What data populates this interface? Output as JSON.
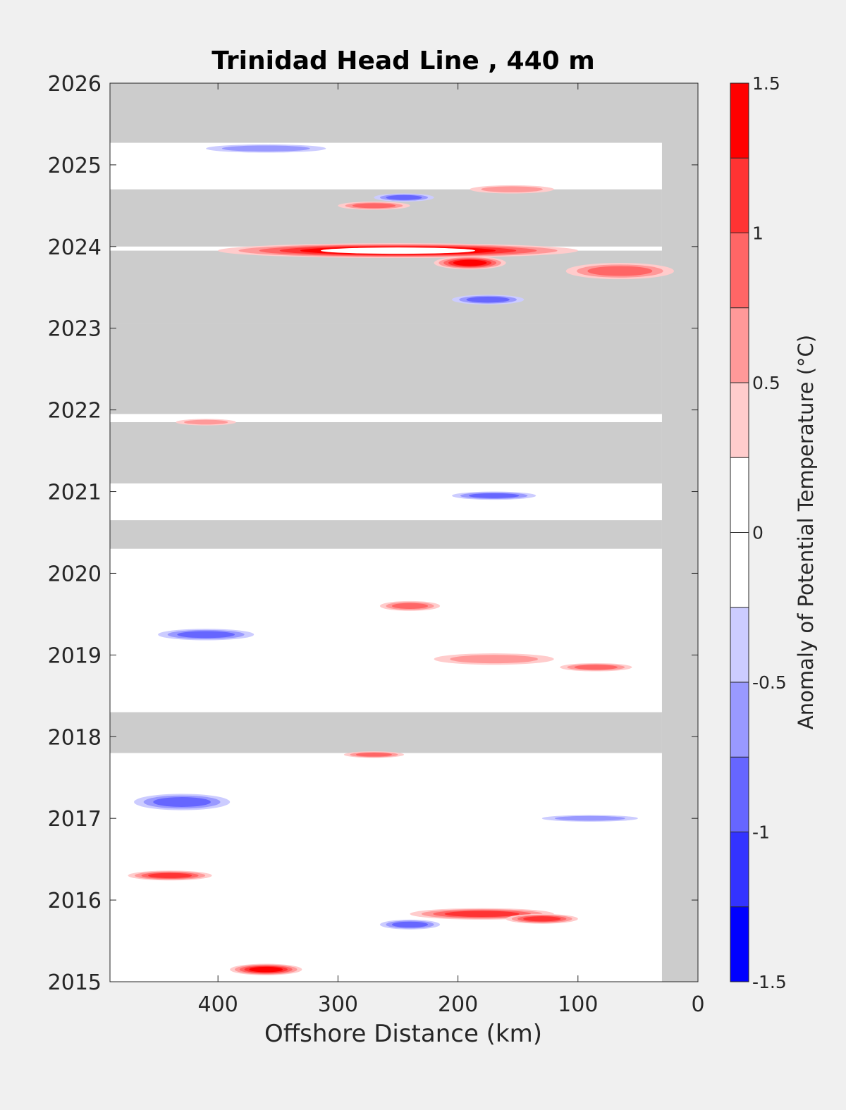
{
  "chart_data": {
    "type": "heatmap",
    "title": "Trinidad Head Line , 440 m",
    "xlabel": "Offshore Distance (km)",
    "ylabel": "",
    "x_reversed": true,
    "xlim": [
      0,
      490
    ],
    "ylim": [
      2015,
      2026
    ],
    "xticks": [
      400,
      300,
      200,
      100,
      0
    ],
    "yticks": [
      2015,
      2016,
      2017,
      2018,
      2019,
      2020,
      2021,
      2022,
      2023,
      2024,
      2025,
      2026
    ],
    "grid": false,
    "colorbar": {
      "label": "Anomaly of Potential Temperature (°C)",
      "ticks": [
        -1.5,
        -1,
        -0.5,
        0,
        0.5,
        1,
        1.5
      ],
      "tick_labels": [
        "-1.5",
        "-1",
        "-0.5",
        "0",
        "0.5",
        "1",
        "1.5"
      ],
      "levels": [
        -1.5,
        -1.25,
        -1.0,
        -0.75,
        -0.5,
        -0.25,
        0,
        0.25,
        0.5,
        0.75,
        1.0,
        1.25,
        1.5
      ],
      "colors": [
        "#0000ff",
        "#3333ff",
        "#6666ff",
        "#9999ff",
        "#ccccff",
        "#ffffff",
        "#ffffff",
        "#ffcccc",
        "#ff9999",
        "#ff6666",
        "#ff3333",
        "#ff0000"
      ]
    },
    "missing_color": "#cccccc",
    "gaps": [
      {
        "x": [
          0,
          490
        ],
        "t": [
          2025.27,
          2026.0
        ]
      },
      {
        "x": [
          30,
          490
        ],
        "t": [
          2024.0,
          2024.7
        ]
      },
      {
        "x": [
          30,
          490
        ],
        "t": [
          2023.05,
          2023.95
        ]
      },
      {
        "x": [
          30,
          490
        ],
        "t": [
          2021.95,
          2023.05
        ]
      },
      {
        "x": [
          30,
          490
        ],
        "t": [
          2021.1,
          2021.85
        ]
      },
      {
        "x": [
          30,
          490
        ],
        "t": [
          2020.3,
          2020.65
        ]
      },
      {
        "x": [
          30,
          490
        ],
        "t": [
          2017.8,
          2018.3
        ]
      },
      {
        "x": [
          0,
          30
        ],
        "t": [
          2015.0,
          2026.0
        ]
      }
    ],
    "anomalies": [
      {
        "x": 250,
        "t": 2023.95,
        "value": 1.5,
        "rx": 150,
        "rt": 0.09
      },
      {
        "x": 190,
        "t": 2023.8,
        "value": 1.25,
        "rx": 30,
        "rt": 0.08
      },
      {
        "x": 65,
        "t": 2023.7,
        "value": 0.75,
        "rx": 45,
        "rt": 0.1
      },
      {
        "x": 175,
        "t": 2023.35,
        "value": -0.75,
        "rx": 30,
        "rt": 0.06
      },
      {
        "x": 270,
        "t": 2024.5,
        "value": 0.75,
        "rx": 30,
        "rt": 0.05
      },
      {
        "x": 155,
        "t": 2024.7,
        "value": 0.5,
        "rx": 35,
        "rt": 0.05
      },
      {
        "x": 245,
        "t": 2024.6,
        "value": -0.75,
        "rx": 25,
        "rt": 0.05
      },
      {
        "x": 360,
        "t": 2025.2,
        "value": -0.5,
        "rx": 50,
        "rt": 0.05
      },
      {
        "x": 240,
        "t": 2019.6,
        "value": 0.75,
        "rx": 25,
        "rt": 0.06
      },
      {
        "x": 170,
        "t": 2018.95,
        "value": 0.5,
        "rx": 50,
        "rt": 0.07
      },
      {
        "x": 85,
        "t": 2018.85,
        "value": 0.75,
        "rx": 30,
        "rt": 0.05
      },
      {
        "x": 410,
        "t": 2019.25,
        "value": -0.75,
        "rx": 40,
        "rt": 0.07
      },
      {
        "x": 170,
        "t": 2020.95,
        "value": -0.75,
        "rx": 35,
        "rt": 0.05
      },
      {
        "x": 430,
        "t": 2017.2,
        "value": -0.75,
        "rx": 40,
        "rt": 0.1
      },
      {
        "x": 440,
        "t": 2016.3,
        "value": 1.0,
        "rx": 35,
        "rt": 0.06
      },
      {
        "x": 360,
        "t": 2015.15,
        "value": 1.25,
        "rx": 30,
        "rt": 0.07
      },
      {
        "x": 180,
        "t": 2015.83,
        "value": 1.0,
        "rx": 60,
        "rt": 0.07
      },
      {
        "x": 130,
        "t": 2015.77,
        "value": 1.0,
        "rx": 30,
        "rt": 0.06
      },
      {
        "x": 240,
        "t": 2015.7,
        "value": -0.75,
        "rx": 25,
        "rt": 0.06
      },
      {
        "x": 270,
        "t": 2017.78,
        "value": 0.75,
        "rx": 25,
        "rt": 0.04
      },
      {
        "x": 410,
        "t": 2021.85,
        "value": 0.5,
        "rx": 25,
        "rt": 0.04
      },
      {
        "x": 90,
        "t": 2017.0,
        "value": -0.5,
        "rx": 40,
        "rt": 0.04
      }
    ]
  }
}
